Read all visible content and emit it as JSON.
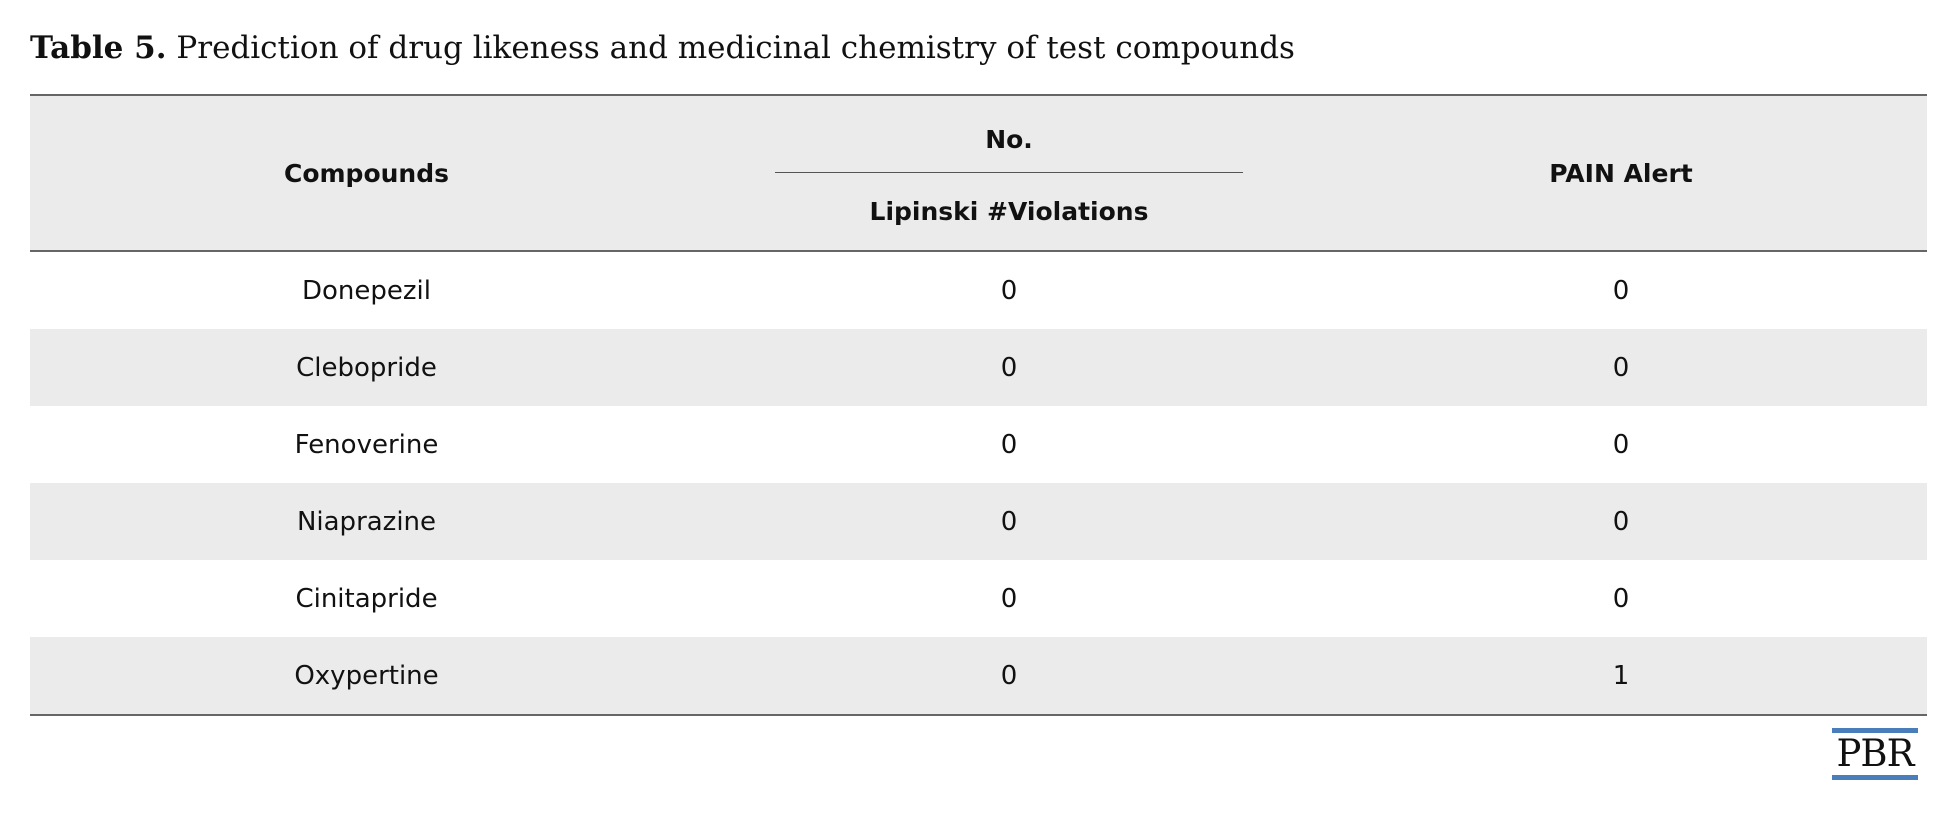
{
  "caption": {
    "label": "Table 5.",
    "text": " Prediction of drug likeness and medicinal chemistry of test compounds"
  },
  "table": {
    "headers": {
      "compounds": "Compounds",
      "group": "No.",
      "lipinski": "Lipinski #Violations",
      "pain": "PAIN Alert"
    },
    "rows": [
      {
        "compound": "Donepezil",
        "lipinski": "0",
        "pain": "0"
      },
      {
        "compound": "Clebopride",
        "lipinski": "0",
        "pain": "0"
      },
      {
        "compound": "Fenoverine",
        "lipinski": "0",
        "pain": "0"
      },
      {
        "compound": "Niaprazine",
        "lipinski": "0",
        "pain": "0"
      },
      {
        "compound": "Cinitapride",
        "lipinski": "0",
        "pain": "0"
      },
      {
        "compound": "Oxypertine",
        "lipinski": "0",
        "pain": "1"
      }
    ]
  },
  "logo": {
    "text": "PBR",
    "accent_color": "#4a7ebb"
  }
}
